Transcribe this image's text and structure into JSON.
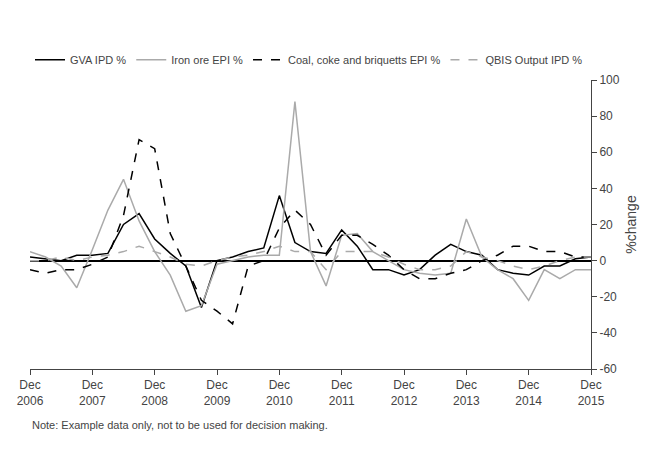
{
  "chart_data": {
    "type": "line",
    "ylabel": "%change",
    "annotations": [
      "Note: Example data only, not to be used for decision making."
    ],
    "categories": [
      "Dec\n2006",
      null,
      null,
      null,
      "Dec\n2007",
      null,
      null,
      null,
      "Dec\n2008",
      null,
      null,
      null,
      "Dec\n2009",
      null,
      null,
      null,
      "Dec\n2010",
      null,
      null,
      null,
      "Dec\n2011",
      null,
      null,
      null,
      "Dec\n2012",
      null,
      null,
      null,
      "Dec\n2013",
      null,
      null,
      null,
      "Dec\n2014",
      null,
      null,
      null,
      "Dec\n2015"
    ],
    "series": [
      {
        "name": "GVA IPD %",
        "color": "#000000",
        "line_style": "solid",
        "values": [
          2,
          1,
          0,
          3,
          3,
          4,
          20,
          26,
          12,
          4,
          -3,
          -26,
          0,
          2,
          5,
          7,
          36,
          10,
          5,
          4,
          17,
          8,
          -5,
          -5,
          -8,
          -5,
          3,
          9,
          5,
          3,
          -5,
          -7,
          -8,
          -3,
          -3,
          1,
          2
        ]
      },
      {
        "name": "Iron ore EPI %",
        "color": "#aaaaaa",
        "line_style": "solid",
        "values": [
          5,
          2,
          -3,
          -15,
          6,
          28,
          45,
          22,
          5,
          -8,
          -28,
          -25,
          -2,
          0,
          2,
          3,
          3,
          88,
          5,
          -14,
          14,
          15,
          5,
          0,
          -5,
          -7,
          -8,
          -7,
          23,
          2,
          -5,
          -10,
          -22,
          -5,
          -10,
          -5,
          -5
        ]
      },
      {
        "name": "Coal, coke and briquetts EPI %",
        "color": "#000000",
        "line_style": "dash",
        "values": [
          -5,
          -7,
          -5,
          -5,
          -2,
          2,
          25,
          67,
          62,
          15,
          -3,
          -22,
          -28,
          -35,
          -3,
          0,
          18,
          28,
          20,
          3,
          14,
          14,
          9,
          3,
          -5,
          -10,
          -10,
          -7,
          -5,
          0,
          3,
          8,
          8,
          5,
          5,
          2,
          2
        ]
      },
      {
        "name": "QBIS Output IPD %",
        "color": "#aaaaaa",
        "line_style": "dash",
        "values": [
          0,
          0,
          2,
          0,
          2,
          3,
          5,
          8,
          5,
          2,
          -2,
          -3,
          0,
          2,
          3,
          5,
          8,
          5,
          5,
          -5,
          5,
          5,
          5,
          2,
          -2,
          -5,
          -5,
          -3,
          5,
          2,
          0,
          -3,
          -5,
          -3,
          0,
          2,
          2
        ]
      }
    ],
    "ylim": [
      -60,
      100
    ],
    "yticks": [
      -60,
      -40,
      -20,
      0,
      20,
      40,
      60,
      80,
      100
    ],
    "grid": false,
    "legend": "top"
  }
}
